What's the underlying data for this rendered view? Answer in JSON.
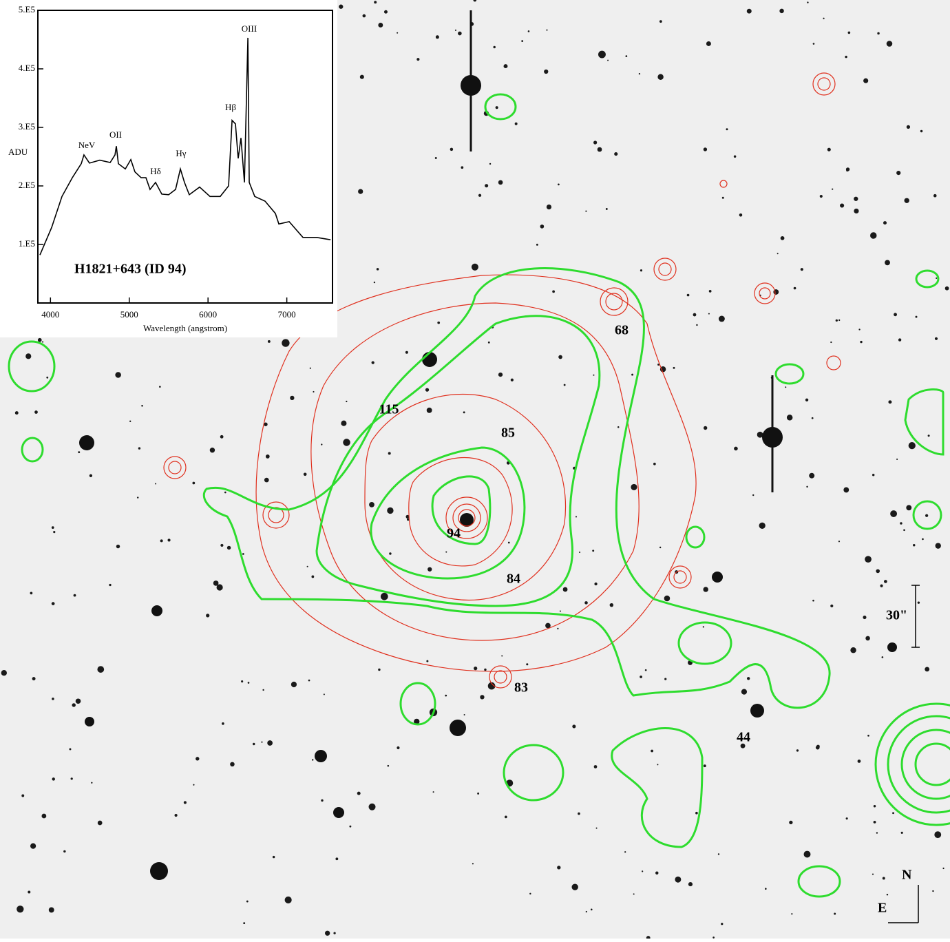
{
  "chart_data": {
    "type": "line",
    "title": "H1821+643 (ID 94)",
    "x_label": "Wavelength (angstrom)",
    "y_label": "ADU",
    "x": [
      3866,
      4015,
      4146,
      4277,
      4391,
      4425,
      4495,
      4626,
      4758,
      4819,
      4836,
      4862,
      4950,
      5020,
      5072,
      5151,
      5212,
      5264,
      5334,
      5413,
      5500,
      5588,
      5649,
      5701,
      5762,
      5893,
      6025,
      6155,
      6261,
      6305,
      6348,
      6383,
      6418,
      6462,
      6480,
      6506,
      6523,
      6593,
      6724,
      6855,
      6899,
      7030,
      7205,
      7380,
      7555
    ],
    "series": [
      {
        "name": "H1821+643",
        "color": "#000000",
        "values": [
          82000,
          129000,
          182000,
          214000,
          238000,
          253000,
          239000,
          244000,
          240000,
          253000,
          268000,
          238000,
          229000,
          245000,
          224000,
          214000,
          214000,
          194000,
          206000,
          186000,
          185000,
          194000,
          229000,
          206000,
          185000,
          198000,
          182000,
          182000,
          200000,
          312000,
          306000,
          247000,
          282000,
          206000,
          306000,
          453000,
          206000,
          182000,
          174000,
          153000,
          135000,
          139000,
          112000,
          112000,
          108000
        ]
      }
    ],
    "xlim": [
      3840,
      7580
    ],
    "xticks": [
      4000,
      5000,
      6000,
      7000
    ],
    "ylim": [
      0,
      500000
    ],
    "yticks": [
      {
        "value": 100000,
        "label": "1.E5"
      },
      {
        "value": 200000,
        "label": "2.E5"
      },
      {
        "value": 300000,
        "label": "3.E5"
      },
      {
        "value": 400000,
        "label": "4.E5"
      },
      {
        "value": 500000,
        "label": "5.E5"
      }
    ],
    "annotations": [
      "NeV",
      "OII",
      "Hδ",
      "Hγ",
      "Hβ",
      "OIII"
    ]
  },
  "image": {
    "labels": [
      "68",
      "115",
      "85",
      "94",
      "84",
      "83",
      "44"
    ],
    "scale_bar": "30\"",
    "compass": {
      "north": "N",
      "east": "E"
    }
  }
}
